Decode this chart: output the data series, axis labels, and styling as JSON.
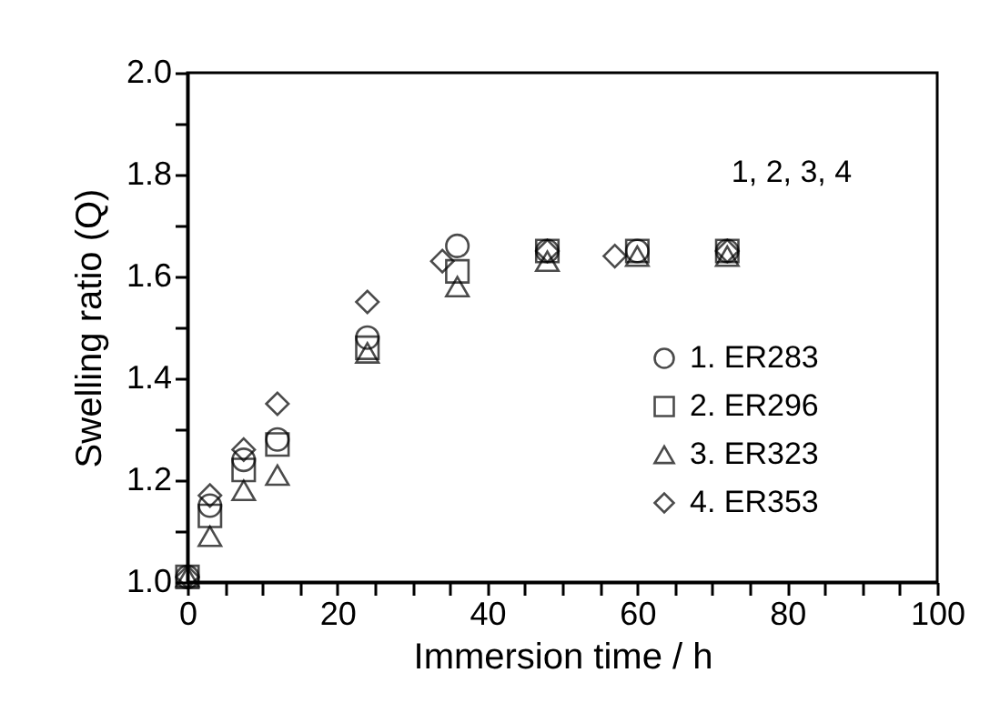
{
  "chart_data": {
    "type": "scatter",
    "xlabel": "Immersion time / h",
    "ylabel": "Swelling ratio (Q)",
    "xlim": [
      0,
      100
    ],
    "ylim": [
      1.0,
      2.0
    ],
    "xticks": [
      0,
      {
        "value": 5,
        "label": null
      },
      {
        "value": 10,
        "label": null
      },
      {
        "value": 15,
        "label": null
      },
      20,
      {
        "value": 25,
        "label": null
      },
      {
        "value": 30,
        "label": null
      },
      {
        "value": 35,
        "label": null
      },
      40,
      {
        "value": 45,
        "label": null
      },
      {
        "value": 50,
        "label": null
      },
      {
        "value": 55,
        "label": null
      },
      60,
      {
        "value": 65,
        "label": null
      },
      {
        "value": 70,
        "label": null
      },
      {
        "value": 75,
        "label": null
      },
      80,
      {
        "value": 85,
        "label": null
      },
      {
        "value": 90,
        "label": null
      },
      {
        "value": 95,
        "label": null
      },
      100
    ],
    "yticks": [
      {
        "value": 1.0,
        "label": "1.0"
      },
      {
        "value": 1.1,
        "label": null
      },
      1.2,
      {
        "value": 1.3,
        "label": null
      },
      1.4,
      {
        "value": 1.5,
        "label": null
      },
      1.6,
      {
        "value": 1.7,
        "label": null
      },
      1.8,
      {
        "value": 1.9,
        "label": null
      },
      {
        "value": 2.0,
        "label": "2.0"
      }
    ],
    "grid": false,
    "legend": "right",
    "annotations": [
      "1, 2, 3, 4"
    ],
    "series": [
      {
        "name": "1. ER283",
        "color": "#000000",
        "marker": "circle",
        "x": [
          0,
          3,
          7.5,
          12,
          24,
          36,
          48,
          60,
          72
        ],
        "values": [
          1.01,
          1.15,
          1.24,
          1.28,
          1.48,
          1.66,
          1.65,
          1.65,
          1.65
        ]
      },
      {
        "name": "2. ER296",
        "color": "#000000",
        "marker": "square",
        "x": [
          0,
          3,
          7.5,
          12,
          24,
          36,
          48,
          60,
          72
        ],
        "values": [
          1.01,
          1.13,
          1.22,
          1.27,
          1.46,
          1.61,
          1.65,
          1.65,
          1.65
        ]
      },
      {
        "name": "3. ER323",
        "color": "#000000",
        "marker": "triangle",
        "x": [
          0,
          3,
          7.5,
          12,
          24,
          36,
          48,
          60,
          72
        ],
        "values": [
          1.01,
          1.09,
          1.18,
          1.21,
          1.45,
          1.58,
          1.63,
          1.64,
          1.64
        ]
      },
      {
        "name": "4. ER353",
        "color": "#000000",
        "marker": "diamond",
        "x": [
          0,
          3,
          7.5,
          12,
          24,
          34,
          48,
          57,
          72
        ],
        "values": [
          1.01,
          1.17,
          1.26,
          1.35,
          1.55,
          1.63,
          1.65,
          1.64,
          1.65
        ]
      }
    ]
  }
}
